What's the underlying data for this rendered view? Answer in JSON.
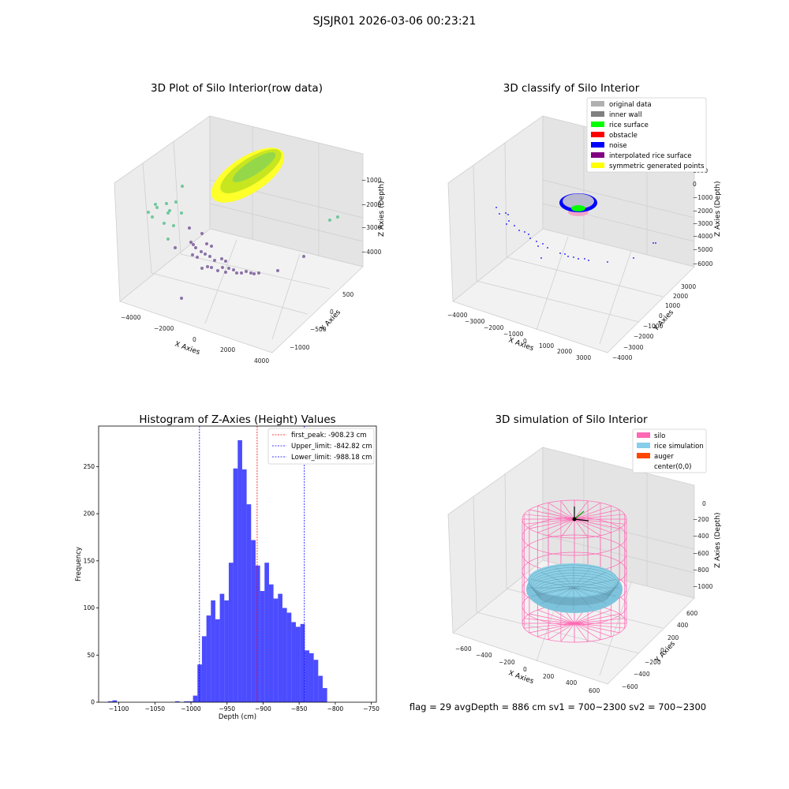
{
  "suptitle": "SJSJR01 2026-03-06 00:23:21",
  "footer": "flag = 29  avgDepth = 886 cm  sv1 = 700~2300  sv2 = 700~2300",
  "chart_data": [
    {
      "type": "scatter",
      "title": "3D Plot of Silo Interior(row data)",
      "xlabel": "X Axies",
      "ylabel": "Y Axies",
      "zlabel": "Z Axies (Depth)",
      "x_ticks": [
        "−4000",
        "−2000",
        "0",
        "2000",
        "4000"
      ],
      "y_ticks": [
        "−1000",
        "−500",
        "0",
        "500"
      ],
      "z_ticks": [
        "−4000",
        "−3000",
        "−2000",
        "−1000"
      ],
      "colors": {
        "surface": "#c8e620",
        "sparse_teal": "#5cc28f",
        "sparse_purple": "#7a5c9a"
      }
    },
    {
      "type": "scatter",
      "title": "3D classify of Silo Interior",
      "xlabel": "X Axies",
      "ylabel": "Y Axies",
      "zlabel": "Z Axies (Depth)",
      "x_ticks": [
        "−4000",
        "−3000",
        "−2000",
        "−1000",
        "0",
        "1000",
        "2000",
        "3000"
      ],
      "y_ticks": [
        "−4000",
        "−3000",
        "−2000",
        "−1000",
        "0",
        "1000",
        "2000",
        "3000"
      ],
      "z_ticks": [
        "−6000",
        "−5000",
        "−4000",
        "−3000",
        "−2000",
        "−1000",
        "0",
        "1000"
      ],
      "legend": [
        {
          "label": "original data",
          "color": "#b0b0b0"
        },
        {
          "label": "inner wall",
          "color": "#808080"
        },
        {
          "label": "rice surface",
          "color": "#00ff00"
        },
        {
          "label": "obstacle",
          "color": "#ff0000"
        },
        {
          "label": "noise",
          "color": "#0000ff"
        },
        {
          "label": "interpolated rice surface",
          "color": "#800080"
        },
        {
          "label": "symmetric generated points",
          "color": "#ffff00"
        }
      ],
      "legend_position": "top-right"
    },
    {
      "type": "bar",
      "title": "Histogram of Z-Axies (Height) Values",
      "xlabel": "Depth (cm)",
      "ylabel": "Frequency",
      "x_ticks": [
        "−1100",
        "−1050",
        "−1000",
        "−950",
        "−900",
        "−850",
        "−800",
        "−750"
      ],
      "y_ticks": [
        "0",
        "50",
        "100",
        "150",
        "200",
        "250"
      ],
      "xlim": [
        -1128,
        -743
      ],
      "ylim": [
        0,
        293
      ],
      "bin_start": -1115,
      "bin_width": 6.2,
      "counts": [
        1,
        2,
        0,
        0,
        0,
        0,
        0,
        0,
        0,
        0,
        0,
        0,
        0,
        0,
        0,
        1,
        0,
        1,
        1,
        7,
        40,
        70,
        92,
        108,
        88,
        115,
        108,
        148,
        248,
        278,
        247,
        210,
        172,
        145,
        118,
        148,
        125,
        110,
        115,
        100,
        95,
        85,
        80,
        83,
        55,
        52,
        45,
        28,
        15
      ],
      "bar_color": "#0000ff",
      "vlines": [
        {
          "label": "first_peak: -908.23 cm",
          "x": -908.23,
          "color": "#ff0000"
        },
        {
          "label": "Upper_limit: -842.82 cm",
          "x": -842.82,
          "color": "#0000ff"
        },
        {
          "label": "Lower_limit: -988.18 cm",
          "x": -988.18,
          "color": "#0000ff"
        }
      ],
      "legend_position": "top-right"
    },
    {
      "type": "area",
      "title": "3D simulation of Silo Interior",
      "xlabel": "X Axies",
      "ylabel": "Y Axies",
      "zlabel": "Z Axies (Depth)",
      "x_ticks": [
        "−600",
        "−400",
        "−200",
        "0",
        "200",
        "400",
        "600"
      ],
      "y_ticks": [
        "−600",
        "−400",
        "−200",
        "0",
        "200",
        "400",
        "600"
      ],
      "z_ticks": [
        "−1000",
        "−800",
        "−600",
        "−400",
        "−200",
        "0"
      ],
      "legend": [
        {
          "label": "silo",
          "color": "#ff69b4"
        },
        {
          "label": "rice simulation",
          "color": "#87ceeb"
        },
        {
          "label": "auger",
          "color": "#ff4500"
        },
        {
          "label": "center(0,0)",
          "color": ""
        }
      ],
      "legend_position": "top-right"
    }
  ]
}
